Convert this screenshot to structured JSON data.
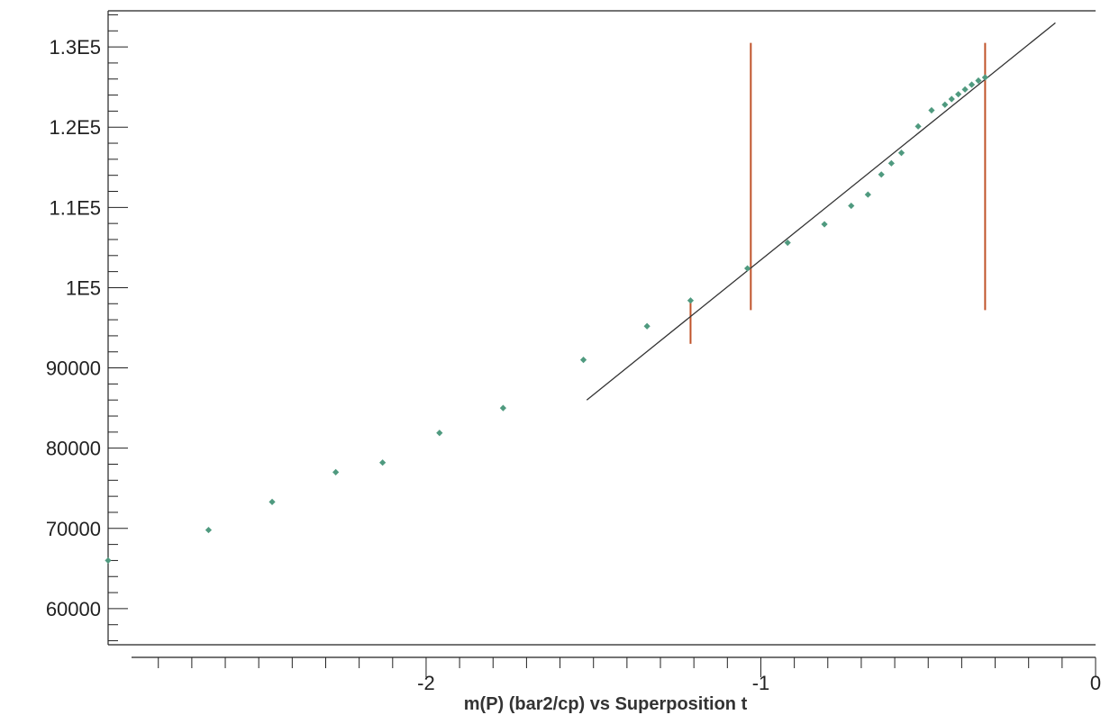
{
  "chart_data": {
    "type": "scatter",
    "title": "",
    "xlabel": "m(P) (bar2/cp)  vs  Superposition t",
    "ylabel": "",
    "xlim": [
      -2.95,
      0
    ],
    "ylim": [
      55500,
      134500
    ],
    "x_major_ticks": [
      -2,
      -1,
      0
    ],
    "x_major_tick_labels": [
      "-2",
      "-1",
      "0"
    ],
    "x_minor_step": 0.1,
    "y_ticks": [
      60000,
      70000,
      80000,
      90000,
      100000,
      110000,
      120000,
      130000
    ],
    "y_tick_labels": [
      "60000",
      "70000",
      "80000",
      "90000",
      "1E5",
      "1.1E5",
      "1.2E5",
      "1.3E5"
    ],
    "y_minor_step": 2000,
    "grid": false,
    "colors": {
      "points": "#4f9a7f",
      "fit_line": "#333333",
      "markers": "#c0532a"
    },
    "series": [
      {
        "type": "scatter",
        "x": [
          -2.95,
          -2.65,
          -2.46,
          -2.27,
          -2.13,
          -1.96,
          -1.77,
          -1.53,
          -1.34,
          -1.21,
          -1.04,
          -0.92,
          -0.81,
          -0.73,
          -0.68,
          -0.64,
          -0.61,
          -0.58,
          -0.53,
          -0.49,
          -0.45,
          -0.43,
          -0.41,
          -0.39,
          -0.37,
          -0.35,
          -0.33
        ],
        "y": [
          66000,
          69800,
          73300,
          77000,
          78200,
          81900,
          85000,
          91000,
          95200,
          98400,
          102400,
          105600,
          107900,
          110200,
          111600,
          114100,
          115500,
          116800,
          120100,
          122100,
          122800,
          123500,
          124100,
          124700,
          125300,
          125800,
          126200
        ]
      },
      {
        "type": "line",
        "x": [
          -1.52,
          -0.12
        ],
        "y": [
          86000,
          133000
        ]
      }
    ],
    "vertical_markers": [
      {
        "x": -1.21,
        "y_range": [
          93000,
          98500
        ]
      },
      {
        "x": -1.03,
        "y_range": [
          97200,
          130500
        ]
      },
      {
        "x": -0.33,
        "y_range": [
          97200,
          130500
        ]
      }
    ]
  }
}
